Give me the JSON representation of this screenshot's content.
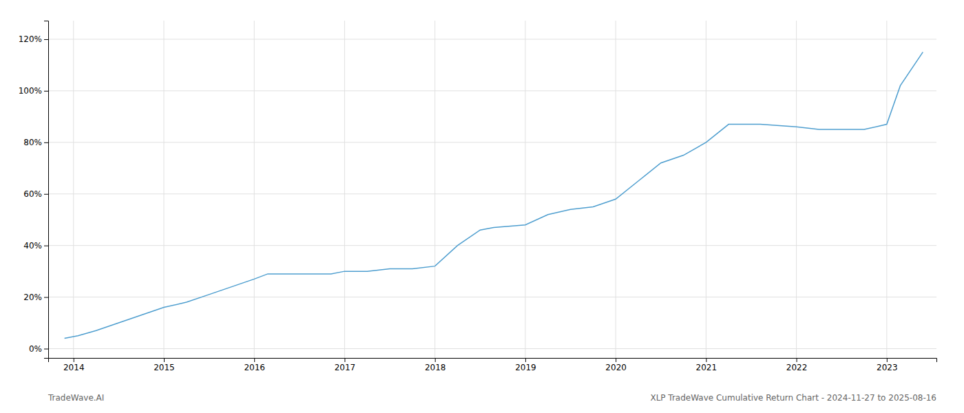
{
  "chart_data": {
    "type": "line",
    "title": "XLP TradeWave Cumulative Return Chart - 2024-11-27 to 2025-08-16",
    "annotations": [
      "TradeWave.AI"
    ],
    "color": "#4e9ecf",
    "grid": true,
    "x": [
      2013.9,
      2014.05,
      2014.25,
      2014.5,
      2014.75,
      2015.0,
      2015.25,
      2015.5,
      2015.75,
      2016.0,
      2016.15,
      2016.3,
      2016.5,
      2016.7,
      2016.85,
      2017.0,
      2017.25,
      2017.5,
      2017.75,
      2018.0,
      2018.25,
      2018.5,
      2018.65,
      2019.0,
      2019.25,
      2019.5,
      2019.75,
      2020.0,
      2020.25,
      2020.5,
      2020.75,
      2021.0,
      2021.25,
      2021.5,
      2021.6,
      2022.0,
      2022.25,
      2022.5,
      2022.75,
      2023.0,
      2023.15,
      2023.4
    ],
    "values": [
      0.04,
      0.05,
      0.07,
      0.1,
      0.13,
      0.16,
      0.18,
      0.21,
      0.24,
      0.27,
      0.29,
      0.29,
      0.29,
      0.29,
      0.29,
      0.3,
      0.3,
      0.31,
      0.31,
      0.32,
      0.4,
      0.46,
      0.47,
      0.48,
      0.52,
      0.54,
      0.55,
      0.58,
      0.65,
      0.72,
      0.75,
      0.8,
      0.87,
      0.87,
      0.87,
      0.86,
      0.85,
      0.85,
      0.85,
      0.87,
      1.02,
      1.15
    ],
    "xlim": [
      2013.72,
      2023.55
    ],
    "ylim": [
      -0.036,
      1.272
    ],
    "xticks": [
      2014,
      2015,
      2016,
      2017,
      2018,
      2019,
      2020,
      2021,
      2022,
      2023
    ],
    "yticks": [
      {
        "value": 0.0,
        "label": "0%"
      },
      {
        "value": 0.2,
        "label": "20%"
      },
      {
        "value": 0.4,
        "label": "40%"
      },
      {
        "value": 0.6,
        "label": "60%"
      },
      {
        "value": 0.8,
        "label": "80%"
      },
      {
        "value": 1.0,
        "label": "100%"
      },
      {
        "value": 1.2,
        "label": "120%"
      }
    ]
  }
}
